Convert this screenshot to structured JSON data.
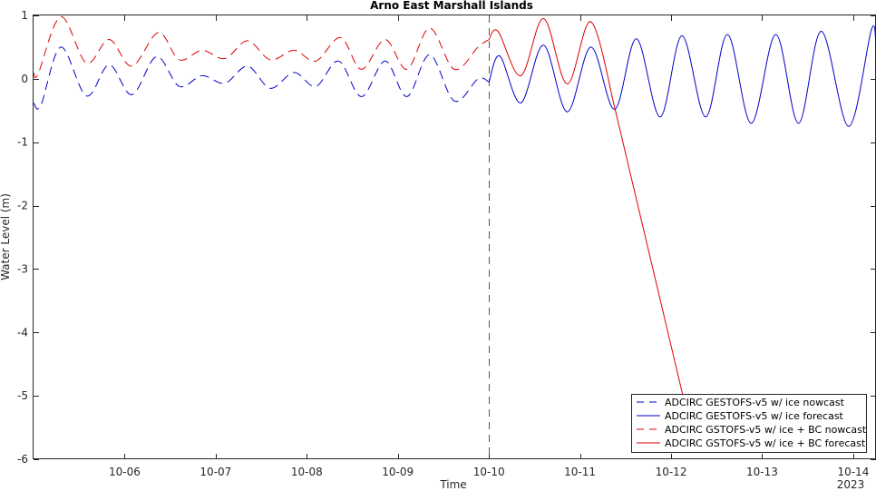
{
  "chart_data": {
    "type": "line",
    "title": "Arno East Marshall Islands",
    "xlabel": "Time",
    "ylabel": "Water Level (m)",
    "x_unit": "days",
    "xlim": [
      5.0,
      14.25
    ],
    "ylim": [
      -6,
      1
    ],
    "x_ticks": [
      {
        "x": 6,
        "label": "10-06"
      },
      {
        "x": 7,
        "label": "10-07"
      },
      {
        "x": 8,
        "label": "10-08"
      },
      {
        "x": 9,
        "label": "10-09"
      },
      {
        "x": 10,
        "label": "10-10"
      },
      {
        "x": 11,
        "label": "10-11"
      },
      {
        "x": 12,
        "label": "10-12"
      },
      {
        "x": 13,
        "label": "10-13"
      },
      {
        "x": 14,
        "label": "10-14"
      }
    ],
    "x_secondary_label": "2023",
    "y_ticks": [
      1,
      0,
      -1,
      -2,
      -3,
      -4,
      -5,
      -6
    ],
    "nowcast_boundary_x": 10.0,
    "grid": false,
    "legend_position": "bottom-right",
    "series": [
      {
        "name": "ADCIRC GESTOFS-v5 w/ ice nowcast",
        "color": "#0000cc",
        "dash": "dashed",
        "x": [
          5.0,
          5.08,
          5.3,
          5.58,
          5.83,
          6.08,
          6.35,
          6.6,
          6.85,
          7.1,
          7.35,
          7.6,
          7.86,
          8.1,
          8.35,
          8.6,
          8.86,
          9.1,
          9.35,
          9.62,
          9.88,
          10.0
        ],
        "y": [
          -0.38,
          -0.42,
          0.5,
          -0.27,
          0.22,
          -0.25,
          0.35,
          -0.12,
          0.05,
          -0.07,
          0.2,
          -0.15,
          0.1,
          -0.12,
          0.28,
          -0.28,
          0.28,
          -0.28,
          0.38,
          -0.35,
          0.0,
          -0.05
        ]
      },
      {
        "name": "ADCIRC GESTOFS-v5 w/ ice forecast",
        "color": "#0000cc",
        "dash": "solid",
        "x": [
          10.0,
          10.12,
          10.35,
          10.6,
          10.86,
          11.12,
          11.38,
          11.62,
          11.88,
          12.12,
          12.38,
          12.62,
          12.88,
          13.15,
          13.4,
          13.65,
          13.95,
          14.2,
          14.25
        ],
        "y": [
          -0.05,
          0.36,
          -0.38,
          0.53,
          -0.52,
          0.5,
          -0.48,
          0.63,
          -0.6,
          0.68,
          -0.6,
          0.7,
          -0.7,
          0.7,
          -0.7,
          0.75,
          -0.75,
          0.78,
          0.5
        ]
      },
      {
        "name": "ADCIRC GSTOFS-v5 w/ ice + BC nowcast",
        "color": "#e00000",
        "dash": "dashed",
        "x": [
          5.0,
          5.05,
          5.3,
          5.58,
          5.83,
          6.08,
          6.37,
          6.6,
          6.85,
          7.1,
          7.35,
          7.6,
          7.86,
          8.1,
          8.37,
          8.6,
          8.86,
          9.1,
          9.35,
          9.62,
          9.88,
          10.0
        ],
        "y": [
          0.1,
          0.08,
          0.98,
          0.25,
          0.62,
          0.2,
          0.73,
          0.3,
          0.45,
          0.32,
          0.6,
          0.3,
          0.45,
          0.28,
          0.65,
          0.15,
          0.62,
          0.15,
          0.8,
          0.15,
          0.5,
          0.62
        ]
      },
      {
        "name": "ADCIRC GSTOFS-v5 w/ ice + BC forecast",
        "color": "#e00000",
        "dash": "solid",
        "x": [
          10.0,
          10.1,
          10.35,
          10.6,
          10.86,
          11.12,
          11.38,
          12.13
        ],
        "y": [
          0.62,
          0.75,
          0.05,
          0.95,
          -0.08,
          0.9,
          -0.45,
          -5.0
        ]
      }
    ]
  }
}
